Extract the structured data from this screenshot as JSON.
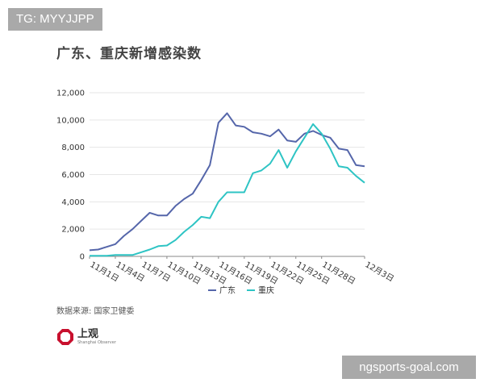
{
  "watermark_top": "TG: MYYJJPP",
  "watermark_bottom": "ngsports-goal.com",
  "source": "数据来源: 国家卫健委",
  "logo": {
    "name": "上观",
    "subtitle": "Shanghai Observer"
  },
  "colors": {
    "guangdong": "#5566aa",
    "chongqing": "#2ec4c4",
    "grid": "#e6e6e6",
    "axis": "#888888"
  },
  "chart_data": {
    "type": "line",
    "title": "广东、重庆新增感染数",
    "xlabel": "",
    "ylabel": "",
    "ylim": [
      0,
      12000
    ],
    "yticks": [
      0,
      2000,
      4000,
      6000,
      8000,
      10000,
      12000
    ],
    "ytick_labels": [
      "0",
      "2,000",
      "4,000",
      "6,000",
      "8,000",
      "10,000",
      "12,000"
    ],
    "x_tick_labels": [
      "11月1日",
      "11月4日",
      "11月7日",
      "11月10日",
      "11月13日",
      "11月16日",
      "11月19日",
      "11月22日",
      "11月25日",
      "11月28日",
      "12月3日"
    ],
    "x_tick_index": [
      0,
      3,
      6,
      9,
      12,
      15,
      18,
      21,
      24,
      27,
      32
    ],
    "grid": "horizontal",
    "legend_position": "bottom-center",
    "series": [
      {
        "name": "广东",
        "values": [
          450,
          500,
          700,
          900,
          1500,
          2000,
          2600,
          3200,
          3000,
          3000,
          3700,
          4200,
          4600,
          5600,
          6700,
          9800,
          10500,
          9600,
          9500,
          9100,
          9000,
          8800,
          9300,
          8500,
          8400,
          9000,
          9200,
          8900,
          8700,
          7900,
          7800,
          6700,
          6600
        ]
      },
      {
        "name": "重庆",
        "values": [
          50,
          50,
          50,
          100,
          100,
          100,
          300,
          500,
          750,
          800,
          1200,
          1800,
          2300,
          2900,
          2800,
          4000,
          4700,
          4700,
          4700,
          6100,
          6300,
          6800,
          7800,
          6500,
          7700,
          8700,
          9700,
          9000,
          7900,
          6600,
          6500,
          5900,
          5400
        ]
      }
    ]
  }
}
